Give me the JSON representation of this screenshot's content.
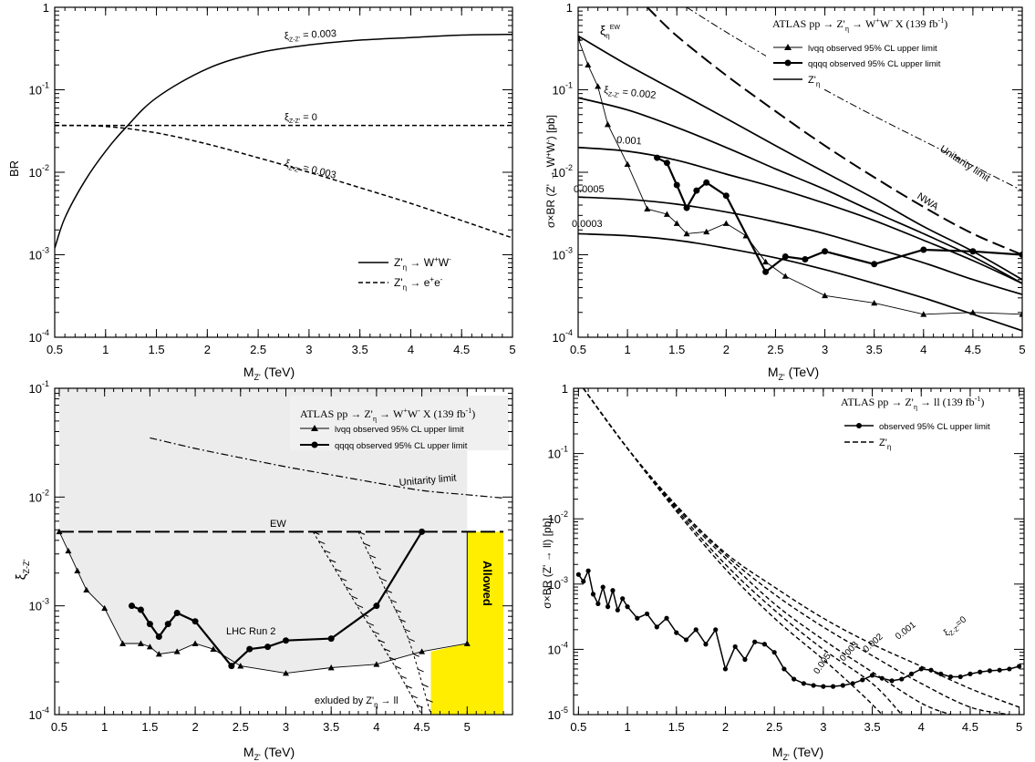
{
  "chart_data": [
    {
      "type": "line",
      "panel": "top-left",
      "xlabel": "M_{Z'} (TeV)",
      "ylabel": "BR",
      "xlim": [
        0.5,
        5
      ],
      "ylim": [
        0.0001,
        1
      ],
      "log_y": true,
      "xticks": [
        "0.5",
        "1",
        "1.5",
        "2",
        "2.5",
        "3",
        "3.5",
        "4",
        "4.5",
        "5"
      ],
      "yticks": [
        "10^-4",
        "10^-3",
        "10^-2",
        "10^-1",
        "1"
      ],
      "legend_position": "bottom-right",
      "legend": [
        {
          "label": "Z'η → W⁺W⁻",
          "style": "solid"
        },
        {
          "label": "Z'η → e⁺e⁻",
          "style": "dashed"
        }
      ],
      "series": [
        {
          "style": "solid",
          "annotation": "ξ_{Z-Z'} = 0.003",
          "x": [
            0.5,
            0.6,
            0.8,
            1.0,
            1.2,
            1.5,
            2.0,
            2.5,
            3.0,
            3.5,
            4.0,
            4.5,
            5.0
          ],
          "y": [
            0.0012,
            0.0028,
            0.008,
            0.018,
            0.035,
            0.08,
            0.18,
            0.28,
            0.35,
            0.4,
            0.43,
            0.46,
            0.47
          ]
        },
        {
          "style": "dashed",
          "annotation": "ξ_{Z-Z'} = 0",
          "x": [
            0.5,
            5.0
          ],
          "y": [
            0.037,
            0.037
          ]
        },
        {
          "style": "dashed",
          "annotation": "ξ_{Z-Z'} = 0.003",
          "x": [
            0.5,
            1.0,
            1.5,
            2.0,
            2.5,
            3.0,
            3.5,
            4.0,
            4.5,
            5.0
          ],
          "y": [
            0.037,
            0.036,
            0.03,
            0.022,
            0.015,
            0.01,
            0.0065,
            0.0042,
            0.0026,
            0.0016
          ]
        }
      ]
    },
    {
      "type": "line",
      "panel": "top-right",
      "xlabel": "M_{Z'} (TeV)",
      "ylabel": "σ×BR (Z' → W⁺W⁻) [pb]",
      "xlim": [
        0.5,
        5
      ],
      "ylim": [
        0.0001,
        1
      ],
      "log_y": true,
      "xticks": [
        "0.5",
        "1",
        "1.5",
        "2",
        "2.5",
        "3",
        "3.5",
        "4",
        "4.5",
        "5"
      ],
      "yticks": [
        "10^-4",
        "10^-3",
        "10^-2",
        "10^-1",
        "1"
      ],
      "legend_title": "ATLAS  pp → Z'η → W⁺W⁻ X (139 fb⁻¹)",
      "legend_position": "top-right",
      "legend": [
        {
          "label": "lνqq observed 95% CL upper limit",
          "marker": "triangle"
        },
        {
          "label": "qqqq observed 95% CL upper limit",
          "marker": "circle"
        },
        {
          "label": "Z'η",
          "style": "solid"
        }
      ],
      "annotations": [
        "ξ_η^EW",
        "ξ_{Z-Z'} = 0.002",
        "0.001",
        "0.0005",
        "0.0003",
        "Unitarity limit",
        "NWA"
      ],
      "series": [
        {
          "name": "lνqq observed 95% CL upper limit",
          "x": [
            0.5,
            0.6,
            0.7,
            0.8,
            1.0,
            1.2,
            1.4,
            1.5,
            1.6,
            1.8,
            2.0,
            2.2,
            2.4,
            2.6,
            3.0,
            3.5,
            4.0,
            4.5,
            5.0
          ],
          "y": [
            0.42,
            0.2,
            0.11,
            0.038,
            0.0125,
            0.0036,
            0.0031,
            0.0024,
            0.0018,
            0.0019,
            0.0024,
            0.0017,
            0.00082,
            0.00055,
            0.00032,
            0.00026,
            0.00019,
            0.0002,
            0.00019
          ]
        },
        {
          "name": "qqqq observed 95% CL upper limit",
          "x": [
            1.3,
            1.4,
            1.5,
            1.6,
            1.7,
            1.8,
            2.0,
            2.4,
            2.6,
            2.8,
            3.0,
            3.5,
            4.0,
            4.5,
            5.0
          ],
          "y": [
            0.015,
            0.013,
            0.007,
            0.0037,
            0.006,
            0.0075,
            0.0052,
            0.00062,
            0.00095,
            0.00088,
            0.0011,
            0.00077,
            0.00115,
            0.0011,
            0.001
          ]
        },
        {
          "name": "ξ_η^EW",
          "x": [
            0.5,
            1.0,
            1.5,
            2.0,
            2.5,
            3.0,
            3.5,
            4.0,
            4.5,
            5.0
          ],
          "y": [
            0.45,
            0.2,
            0.095,
            0.045,
            0.021,
            0.01,
            0.0048,
            0.0022,
            0.0011,
            0.0005
          ]
        },
        {
          "name": "ξ_{Z-Z'} = 0.002",
          "x": [
            0.5,
            1.0,
            1.5,
            2.0,
            2.5,
            3.0,
            3.5,
            4.0,
            4.5,
            5.0
          ],
          "y": [
            0.08,
            0.057,
            0.035,
            0.02,
            0.011,
            0.0062,
            0.0033,
            0.0018,
            0.00095,
            0.00045
          ]
        },
        {
          "name": "0.001",
          "x": [
            0.5,
            1.0,
            1.5,
            2.0,
            2.5,
            3.0,
            3.5,
            4.0,
            4.5,
            5.0
          ],
          "y": [
            0.02,
            0.018,
            0.014,
            0.0095,
            0.0065,
            0.0042,
            0.0026,
            0.0015,
            0.00085,
            0.00045
          ]
        },
        {
          "name": "0.0005",
          "x": [
            0.5,
            1.0,
            1.5,
            2.0,
            2.5,
            3.0,
            3.5,
            4.0,
            4.5,
            5.0
          ],
          "y": [
            0.005,
            0.0047,
            0.0041,
            0.0033,
            0.0025,
            0.0018,
            0.0012,
            0.0008,
            0.0005,
            0.00033
          ]
        },
        {
          "name": "0.0003",
          "x": [
            0.5,
            1.0,
            1.5,
            2.0,
            2.5,
            3.0,
            3.5,
            4.0,
            4.5,
            5.0
          ],
          "y": [
            0.0018,
            0.0017,
            0.0015,
            0.0012,
            0.00092,
            0.00066,
            0.00045,
            0.0003,
            0.00019,
            0.00012
          ]
        },
        {
          "name": "NWA",
          "x": [
            1.2,
            1.5,
            2.0,
            2.5,
            3.0,
            3.5,
            4.0,
            4.5,
            5.0
          ],
          "y": [
            1.0,
            0.45,
            0.15,
            0.055,
            0.021,
            0.0087,
            0.0038,
            0.0018,
            0.001
          ]
        },
        {
          "name": "Unitarity limit",
          "x": [
            1.6,
            2.0,
            2.5,
            3.0,
            3.5,
            4.0,
            4.5,
            5.0
          ],
          "y": [
            1.0,
            0.5,
            0.22,
            0.1,
            0.048,
            0.024,
            0.012,
            0.006
          ]
        }
      ]
    },
    {
      "type": "line",
      "panel": "bottom-left",
      "xlabel": "M_{Z'} (TeV)",
      "ylabel": "ξ_{Z-Z'}",
      "xlim": [
        0.45,
        5.5
      ],
      "ylim": [
        0.0001,
        0.1
      ],
      "log_y": true,
      "xticks": [
        "0.5",
        "1",
        "1.5",
        "2",
        "2.5",
        "3",
        "3.5",
        "4",
        "4.5",
        "5"
      ],
      "yticks": [
        "10^-4",
        "10^-3",
        "10^-2",
        "10^-1"
      ],
      "legend_title": "ATLAS  pp → Z'η → W⁺W⁻ X (139 fb⁻¹)",
      "legend_position": "top-right",
      "legend": [
        {
          "label": "lνqq observed 95% CL upper limit",
          "marker": "triangle"
        },
        {
          "label": "qqqq observed 95% CL upper limit",
          "marker": "circle"
        }
      ],
      "annotations": [
        "Unitarity limit",
        "EW",
        "LHC Run 2",
        "exluded by Z'η → ll",
        "Allowed"
      ],
      "series": [
        {
          "name": "lνqq observed 95% CL upper limit",
          "x": [
            0.5,
            0.6,
            0.7,
            0.8,
            1.0,
            1.2,
            1.4,
            1.5,
            1.6,
            1.8,
            2.0,
            2.2,
            2.5,
            3.0,
            3.5,
            4.0,
            4.5,
            5.0
          ],
          "y": [
            0.0048,
            0.0032,
            0.0021,
            0.0014,
            0.00095,
            0.00045,
            0.00045,
            0.00042,
            0.00036,
            0.00038,
            0.00045,
            0.0004,
            0.00028,
            0.00024,
            0.00027,
            0.00029,
            0.00038,
            0.00045
          ]
        },
        {
          "name": "qqqq observed 95% CL upper limit",
          "x": [
            1.3,
            1.4,
            1.5,
            1.6,
            1.7,
            1.8,
            2.0,
            2.4,
            2.6,
            2.8,
            3.0,
            3.5,
            4.0,
            4.5
          ],
          "y": [
            0.001,
            0.00092,
            0.00068,
            0.00052,
            0.00068,
            0.00086,
            0.00072,
            0.00028,
            0.0004,
            0.00042,
            0.00048,
            0.0005,
            0.001,
            0.0048
          ]
        },
        {
          "name": "EW",
          "x": [
            0.5,
            5.4
          ],
          "y": [
            0.0048,
            0.0048
          ]
        },
        {
          "name": "Unitarity limit",
          "x": [
            1.5,
            2.0,
            2.5,
            3.0,
            3.5,
            4.0,
            4.5,
            5.0,
            5.4
          ],
          "y": [
            0.035,
            0.028,
            0.023,
            0.019,
            0.016,
            0.0135,
            0.0115,
            0.0105,
            0.0098
          ]
        },
        {
          "name": "exluded by Z'η → ll (boundary 1)",
          "x": [
            3.3,
            3.6,
            3.9,
            4.2,
            4.5
          ],
          "y": [
            0.0048,
            0.0018,
            0.0007,
            0.00028,
            0.0001
          ]
        },
        {
          "name": "exluded by Z'η → ll (boundary 2)",
          "x": [
            3.8,
            4.1,
            4.35,
            4.6
          ],
          "y": [
            0.0048,
            0.0014,
            0.0005,
            0.0001
          ]
        }
      ]
    },
    {
      "type": "line",
      "panel": "bottom-right",
      "xlabel": "M_{Z'} (TeV)",
      "ylabel": "σ×BR (Z' → ll) [pb]",
      "xlim": [
        0.45,
        5.05
      ],
      "ylim": [
        1e-05,
        1
      ],
      "log_y": true,
      "xticks": [
        "0.5",
        "1",
        "1.5",
        "2",
        "2.5",
        "3",
        "3.5",
        "4",
        "4.5",
        "5"
      ],
      "yticks": [
        "10^-5",
        "10^-4",
        "10^-3",
        "10^-2",
        "10^-1",
        "1"
      ],
      "legend_title": "ATLAS  pp → Z'η → ll (139 fb⁻¹)",
      "legend_position": "top-right",
      "legend": [
        {
          "label": "observed 95% CL upper limit",
          "marker": "circle"
        },
        {
          "label": "Z'η",
          "style": "dashed"
        }
      ],
      "annotations": [
        "0.005",
        "0.003",
        "0.002",
        "0.001",
        "ξ_{Z-Z'}=0"
      ],
      "series": [
        {
          "name": "observed 95% CL upper limit",
          "x": [
            0.5,
            0.55,
            0.6,
            0.65,
            0.7,
            0.75,
            0.8,
            0.85,
            0.9,
            0.95,
            1.0,
            1.1,
            1.2,
            1.3,
            1.4,
            1.5,
            1.6,
            1.7,
            1.8,
            1.9,
            2.0,
            2.1,
            2.2,
            2.3,
            2.4,
            2.5,
            2.6,
            2.7,
            2.8,
            2.9,
            3.0,
            3.1,
            3.2,
            3.3,
            3.4,
            3.5,
            3.6,
            3.7,
            3.8,
            3.9,
            4.0,
            4.1,
            4.2,
            4.3,
            4.4,
            4.5,
            4.6,
            4.7,
            4.8,
            4.9,
            5.0
          ],
          "y": [
            0.0014,
            0.0011,
            0.0016,
            0.0007,
            0.0005,
            0.0009,
            0.00045,
            0.0008,
            0.0004,
            0.0006,
            0.00045,
            0.0003,
            0.00035,
            0.00022,
            0.0003,
            0.00018,
            0.00014,
            0.0002,
            0.00012,
            0.0002,
            5e-05,
            0.00011,
            7e-05,
            0.00013,
            0.00012,
            9e-05,
            5e-05,
            3.5e-05,
            3e-05,
            2.8e-05,
            2.7e-05,
            2.7e-05,
            2.8e-05,
            3e-05,
            3.4e-05,
            4e-05,
            3.6e-05,
            3.3e-05,
            3.5e-05,
            4.2e-05,
            5e-05,
            4.8e-05,
            4.2e-05,
            3.8e-05,
            3.8e-05,
            4.2e-05,
            4.5e-05,
            4.7e-05,
            4.8e-05,
            5e-05,
            5.5e-05
          ]
        },
        {
          "name": "ξ_{Z-Z'}=0",
          "x": [
            0.55,
            1.0,
            1.5,
            2.0,
            2.5,
            3.0,
            3.5,
            4.0,
            4.5,
            5.0
          ],
          "y": [
            1.0,
            0.12,
            0.016,
            0.003,
            0.0009,
            0.0003,
            0.00012,
            5.5e-05,
            2.5e-05,
            1.3e-05
          ]
        },
        {
          "name": "0.001",
          "x": [
            0.55,
            1.0,
            1.5,
            2.0,
            2.5,
            3.0,
            3.5,
            4.0,
            4.5,
            4.9
          ],
          "y": [
            1.0,
            0.12,
            0.016,
            0.0028,
            0.0007,
            0.00022,
            8e-05,
            3e-05,
            1.3e-05,
            1e-05
          ]
        },
        {
          "name": "0.002",
          "x": [
            0.55,
            1.0,
            1.5,
            2.0,
            2.5,
            3.0,
            3.5,
            4.0,
            4.3
          ],
          "y": [
            1.0,
            0.12,
            0.015,
            0.0025,
            0.0005,
            0.00014,
            4.5e-05,
            1.5e-05,
            1e-05
          ]
        },
        {
          "name": "0.003",
          "x": [
            0.55,
            1.0,
            1.5,
            2.0,
            2.5,
            3.0,
            3.5,
            3.8
          ],
          "y": [
            1.0,
            0.12,
            0.014,
            0.002,
            0.0004,
            0.0001,
            3e-05,
            1e-05
          ]
        },
        {
          "name": "0.005",
          "x": [
            0.55,
            1.0,
            1.5,
            2.0,
            2.5,
            3.0,
            3.4,
            3.6
          ],
          "y": [
            1.0,
            0.12,
            0.013,
            0.0017,
            0.0003,
            7e-05,
            2e-05,
            1e-05
          ]
        }
      ]
    }
  ]
}
